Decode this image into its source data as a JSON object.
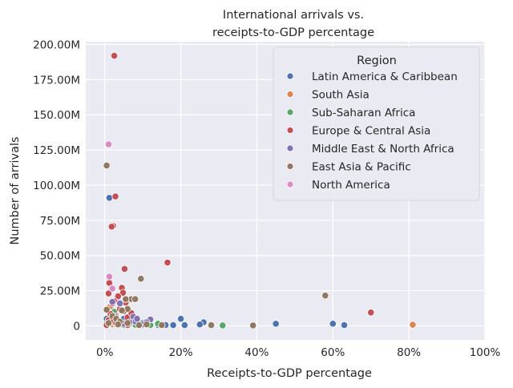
{
  "chart_data": {
    "type": "scatter",
    "title_lines": [
      "International arrivals vs.",
      "receipts-to-GDP percentage"
    ],
    "xlabel": "Receipts-to-GDP percentage",
    "ylabel": "Number of arrivals",
    "xlim": [
      -0.05,
      1.0
    ],
    "ylim": [
      -10000000,
      202000000
    ],
    "xticks": [
      0,
      0.2,
      0.4,
      0.6,
      0.8,
      1.0
    ],
    "xtick_labels": [
      "0%",
      "20%",
      "40%",
      "60%",
      "80%",
      "100%"
    ],
    "yticks": [
      0,
      25000000,
      50000000,
      75000000,
      100000000,
      125000000,
      150000000,
      175000000,
      200000000
    ],
    "ytick_labels": [
      "0",
      "25.00M",
      "50.00M",
      "75.00M",
      "100.00M",
      "125.00M",
      "150.00M",
      "175.00M",
      "200.00M"
    ],
    "grid": true,
    "legend": {
      "title": "Region",
      "placement": "top-right"
    },
    "series": [
      {
        "name": "Latin America & Caribbean",
        "color": "#4c72b0",
        "points": [
          [
            0.012,
            91000000
          ],
          [
            0.2,
            5000000
          ],
          [
            0.26,
            2500000
          ],
          [
            0.45,
            1500000
          ],
          [
            0.6,
            1500000
          ],
          [
            0.63,
            500000
          ],
          [
            0.25,
            1000000
          ],
          [
            0.21,
            500000
          ],
          [
            0.18,
            500000
          ],
          [
            0.07,
            7000000
          ],
          [
            0.05,
            5000000
          ],
          [
            0.03,
            3000000
          ],
          [
            0.01,
            4000000
          ],
          [
            0.02,
            1000000
          ],
          [
            0.04,
            2000000
          ],
          [
            0.06,
            1500000
          ],
          [
            0.08,
            800000
          ],
          [
            0.1,
            2000000
          ],
          [
            0.12,
            1000000
          ],
          [
            0.005,
            5000000
          ],
          [
            0.015,
            2000000
          ],
          [
            0.03,
            1500000
          ],
          [
            0.09,
            300000
          ],
          [
            0.14,
            500000
          ],
          [
            0.16,
            600000
          ],
          [
            0.035,
            20000000
          ]
        ]
      },
      {
        "name": "South Asia",
        "color": "#dd8452",
        "points": [
          [
            0.81,
            800000
          ],
          [
            0.02,
            1000000
          ],
          [
            0.015,
            14000000
          ],
          [
            0.01,
            2000000
          ]
        ]
      },
      {
        "name": "Sub-Saharan Africa",
        "color": "#55a868",
        "points": [
          [
            0.31,
            300000
          ],
          [
            0.025,
            10000000
          ],
          [
            0.01,
            1500000
          ],
          [
            0.03,
            1000000
          ],
          [
            0.05,
            500000
          ],
          [
            0.06,
            2000000
          ],
          [
            0.08,
            800000
          ],
          [
            0.1,
            400000
          ],
          [
            0.12,
            600000
          ],
          [
            0.15,
            300000
          ],
          [
            0.04,
            3000000
          ],
          [
            0.02,
            5000000
          ],
          [
            0.065,
            1200000
          ],
          [
            0.14,
            1500000
          ]
        ]
      },
      {
        "name": "Europe & Central Asia",
        "color": "#c44e52",
        "points": [
          [
            0.025,
            192000000
          ],
          [
            0.028,
            92000000
          ],
          [
            0.022,
            71000000
          ],
          [
            0.018,
            70500000
          ],
          [
            0.165,
            45000000
          ],
          [
            0.052,
            40500000
          ],
          [
            0.012,
            30500000
          ],
          [
            0.045,
            27000000
          ],
          [
            0.018,
            26500000
          ],
          [
            0.048,
            23500000
          ],
          [
            0.01,
            23000000
          ],
          [
            0.035,
            21000000
          ],
          [
            0.025,
            17500000
          ],
          [
            0.02,
            16000000
          ],
          [
            0.055,
            16500000
          ],
          [
            0.04,
            12000000
          ],
          [
            0.05,
            10500000
          ],
          [
            0.015,
            8500000
          ],
          [
            0.03,
            7000000
          ],
          [
            0.06,
            6000000
          ],
          [
            0.07,
            9000000
          ],
          [
            0.08,
            5500000
          ],
          [
            0.01,
            4000000
          ],
          [
            0.005,
            1500000
          ],
          [
            0.02,
            3000000
          ],
          [
            0.03,
            2000000
          ],
          [
            0.04,
            1000000
          ],
          [
            0.06,
            500000
          ],
          [
            0.7,
            9500000
          ],
          [
            0.005,
            500000
          ]
        ]
      },
      {
        "name": "Middle East & North Africa",
        "color": "#8172b3",
        "points": [
          [
            0.02,
            17000000
          ],
          [
            0.04,
            16000000
          ],
          [
            0.03,
            6000000
          ],
          [
            0.075,
            6500000
          ],
          [
            0.12,
            4500000
          ],
          [
            0.11,
            2500000
          ],
          [
            0.05,
            1500000
          ],
          [
            0.08,
            3000000
          ],
          [
            0.1,
            1000000
          ],
          [
            0.065,
            2500000
          ],
          [
            0.085,
            5000000
          ]
        ]
      },
      {
        "name": "East Asia & Pacific",
        "color": "#937860",
        "points": [
          [
            0.005,
            114000000
          ],
          [
            0.58,
            21500000
          ],
          [
            0.095,
            33500000
          ],
          [
            0.07,
            19000000
          ],
          [
            0.08,
            19000000
          ],
          [
            0.055,
            19000000
          ],
          [
            0.06,
            12000000
          ],
          [
            0.005,
            11500000
          ],
          [
            0.045,
            11000000
          ],
          [
            0.02,
            7000000
          ],
          [
            0.03,
            5000000
          ],
          [
            0.04,
            3000000
          ],
          [
            0.06,
            2000000
          ],
          [
            0.09,
            500000
          ],
          [
            0.11,
            1000000
          ],
          [
            0.15,
            500000
          ],
          [
            0.28,
            500000
          ],
          [
            0.39,
            300000
          ],
          [
            0.01,
            2000000
          ],
          [
            0.035,
            1000000
          ]
        ]
      },
      {
        "name": "North America",
        "color": "#da8bc3",
        "points": [
          [
            0.01,
            129000000
          ],
          [
            0.012,
            35000000
          ],
          [
            0.02,
            26500000
          ]
        ]
      }
    ]
  }
}
